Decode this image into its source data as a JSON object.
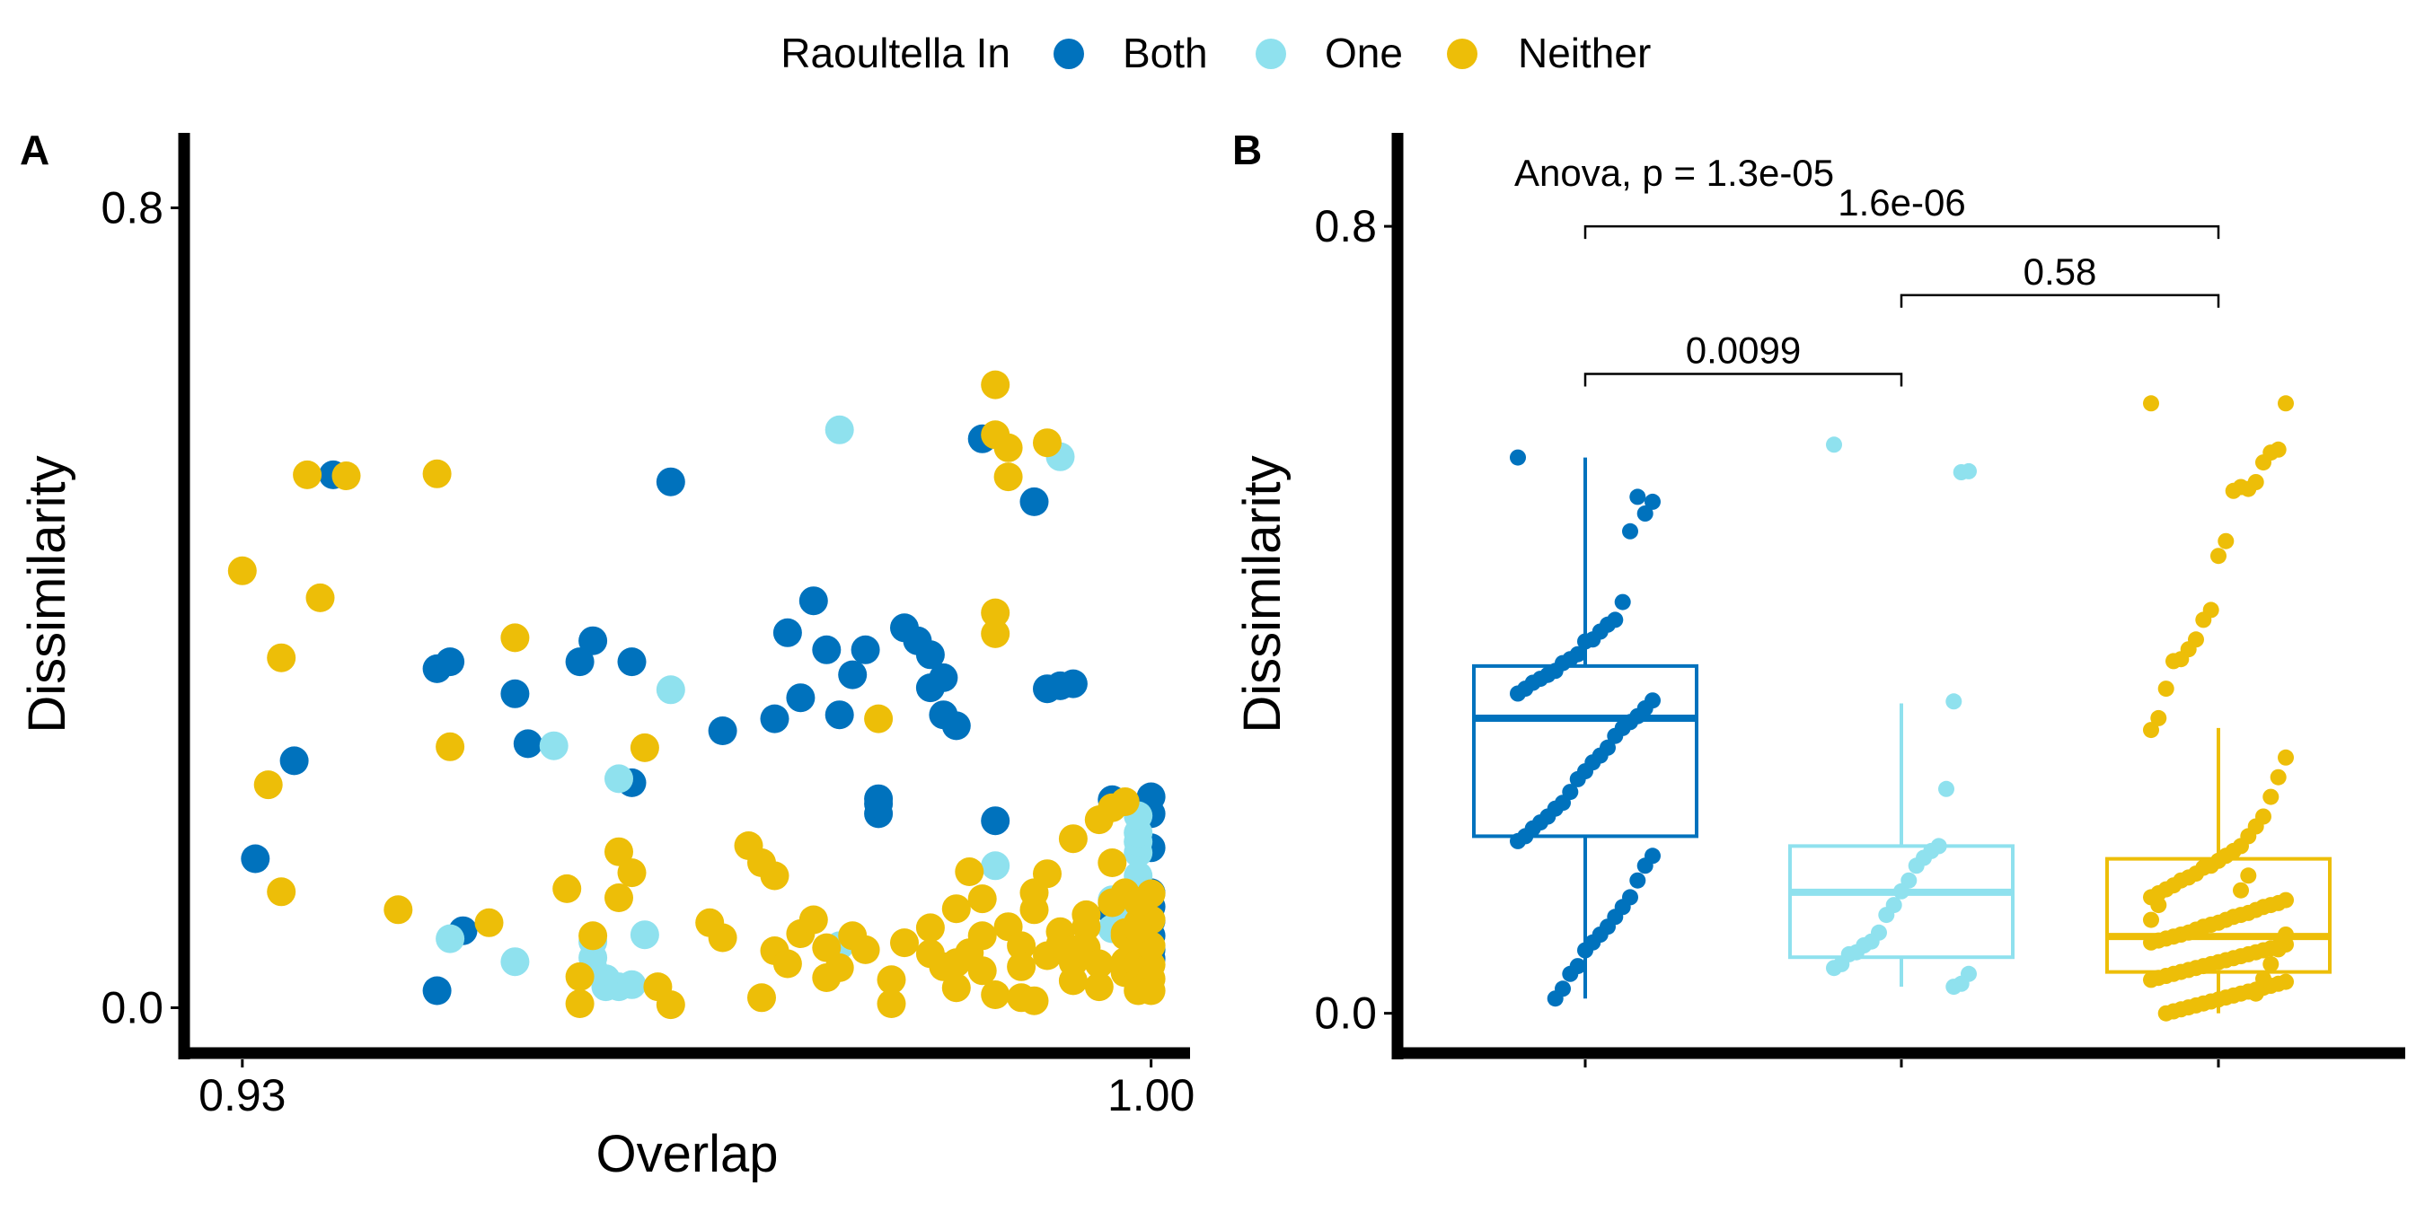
{
  "legend": {
    "title": "Raoultella In",
    "entries": [
      {
        "label": "Both",
        "color": "#0072BD"
      },
      {
        "label": "One",
        "color": "#8FE1EE"
      },
      {
        "label": "Neither",
        "color": "#EDBE08"
      }
    ]
  },
  "chart_data": [
    {
      "panel_tag": "A",
      "type": "scatter",
      "xlabel": "Overlap",
      "ylabel": "Dissimilarity",
      "xlim": [
        0.926,
        1.003
      ],
      "ylim": [
        -0.04,
        0.875
      ],
      "xticks": [
        {
          "value": 0.93,
          "label": "0.93"
        },
        {
          "value": 1.0,
          "label": "1.00"
        }
      ],
      "yticks": [
        {
          "value": 0.0,
          "label": "0.0"
        },
        {
          "value": 0.8,
          "label": "0.8"
        }
      ],
      "grid": false,
      "legend_position": "top",
      "series": [
        {
          "name": "Both",
          "color": "#0072BD",
          "points": [
            [
              0.937,
              0.533
            ],
            [
              0.934,
              0.247
            ],
            [
              0.931,
              0.149
            ],
            [
              0.945,
              0.339
            ],
            [
              0.946,
              0.346
            ],
            [
              0.951,
              0.314
            ],
            [
              0.952,
              0.264
            ],
            [
              0.957,
              0.367
            ],
            [
              0.956,
              0.346
            ],
            [
              0.96,
              0.346
            ],
            [
              0.96,
              0.225
            ],
            [
              0.963,
              0.526
            ],
            [
              0.967,
              0.277
            ],
            [
              0.971,
              0.289
            ],
            [
              0.972,
              0.375
            ],
            [
              0.974,
              0.407
            ],
            [
              0.975,
              0.358
            ],
            [
              0.976,
              0.293
            ],
            [
              0.977,
              0.333
            ],
            [
              0.978,
              0.358
            ],
            [
              0.973,
              0.31
            ],
            [
              0.979,
              0.194
            ],
            [
              0.979,
              0.209
            ],
            [
              0.979,
              0.204
            ],
            [
              0.981,
              0.38
            ],
            [
              0.982,
              0.367
            ],
            [
              0.983,
              0.353
            ],
            [
              0.983,
              0.32
            ],
            [
              0.984,
              0.293
            ],
            [
              0.984,
              0.33
            ],
            [
              0.985,
              0.282
            ],
            [
              0.987,
              0.569
            ],
            [
              0.991,
              0.506
            ],
            [
              0.988,
              0.187
            ],
            [
              0.992,
              0.319
            ],
            [
              0.993,
              0.322
            ],
            [
              0.994,
              0.324
            ],
            [
              0.997,
              0.208
            ],
            [
              0.997,
              0.096
            ],
            [
              0.945,
              0.017
            ],
            [
              0.947,
              0.077
            ],
            [
              0.999,
              0.066
            ],
            [
              0.999,
              0.088
            ],
            [
              1.0,
              0.115
            ],
            [
              1.0,
              0.101
            ],
            [
              1.0,
              0.087
            ],
            [
              1.0,
              0.072
            ],
            [
              1.0,
              0.058
            ],
            [
              1.0,
              0.049
            ],
            [
              1.0,
              0.16
            ],
            [
              1.0,
              0.194
            ],
            [
              1.0,
              0.211
            ],
            [
              0.999,
              0.125
            ],
            [
              0.999,
              0.097
            ],
            [
              0.999,
              0.066
            ],
            [
              0.999,
              0.052
            ],
            [
              0.999,
              0.037
            ],
            [
              0.998,
              0.083
            ]
          ]
        },
        {
          "name": "One",
          "color": "#8FE1EE",
          "points": [
            [
              0.976,
              0.578
            ],
            [
              0.993,
              0.551
            ],
            [
              0.963,
              0.318
            ],
            [
              0.954,
              0.262
            ],
            [
              0.959,
              0.229
            ],
            [
              0.988,
              0.142
            ],
            [
              0.946,
              0.069
            ],
            [
              0.951,
              0.046
            ],
            [
              0.957,
              0.066
            ],
            [
              0.957,
              0.05
            ],
            [
              0.958,
              0.029
            ],
            [
              0.958,
              0.021
            ],
            [
              0.959,
              0.021
            ],
            [
              0.96,
              0.023
            ],
            [
              0.961,
              0.073
            ],
            [
              0.976,
              0.062
            ],
            [
              0.997,
              0.108
            ],
            [
              0.997,
              0.079
            ],
            [
              0.999,
              0.155
            ],
            [
              0.999,
              0.166
            ],
            [
              0.999,
              0.175
            ],
            [
              0.999,
              0.192
            ],
            [
              0.999,
              0.132
            ],
            [
              0.998,
              0.095
            ],
            [
              0.957,
              0.04
            ]
          ]
        },
        {
          "name": "Neither",
          "color": "#EDBE08",
          "points": [
            [
              0.93,
              0.437
            ],
            [
              0.935,
              0.533
            ],
            [
              0.938,
              0.532
            ],
            [
              0.933,
              0.35
            ],
            [
              0.936,
              0.41
            ],
            [
              0.932,
              0.223
            ],
            [
              0.933,
              0.116
            ],
            [
              0.942,
              0.098
            ],
            [
              0.945,
              0.534
            ],
            [
              0.946,
              0.261
            ],
            [
              0.949,
              0.085
            ],
            [
              0.951,
              0.37
            ],
            [
              0.955,
              0.119
            ],
            [
              0.956,
              0.031
            ],
            [
              0.957,
              0.072
            ],
            [
              0.959,
              0.11
            ],
            [
              0.959,
              0.156
            ],
            [
              0.96,
              0.135
            ],
            [
              0.961,
              0.26
            ],
            [
              0.962,
              0.021
            ],
            [
              0.966,
              0.085
            ],
            [
              0.967,
              0.07
            ],
            [
              0.969,
              0.162
            ],
            [
              0.97,
              0.145
            ],
            [
              0.971,
              0.132
            ],
            [
              0.971,
              0.057
            ],
            [
              0.972,
              0.044
            ],
            [
              0.973,
              0.074
            ],
            [
              0.974,
              0.088
            ],
            [
              0.975,
              0.06
            ],
            [
              0.976,
              0.04
            ],
            [
              0.977,
              0.072
            ],
            [
              0.978,
              0.058
            ],
            [
              0.979,
              0.289
            ],
            [
              0.98,
              0.028
            ],
            [
              0.981,
              0.065
            ],
            [
              0.983,
              0.08
            ],
            [
              0.983,
              0.054
            ],
            [
              0.984,
              0.041
            ],
            [
              0.985,
              0.045
            ],
            [
              0.985,
              0.099
            ],
            [
              0.986,
              0.136
            ],
            [
              0.986,
              0.055
            ],
            [
              0.987,
              0.072
            ],
            [
              0.987,
              0.037
            ],
            [
              0.987,
              0.109
            ],
            [
              0.988,
              0.374
            ],
            [
              0.988,
              0.573
            ],
            [
              0.988,
              0.623
            ],
            [
              0.989,
              0.531
            ],
            [
              0.989,
              0.56
            ],
            [
              0.988,
              0.395
            ],
            [
              0.989,
              0.081
            ],
            [
              0.99,
              0.062
            ],
            [
              0.99,
              0.041
            ],
            [
              0.991,
              0.115
            ],
            [
              0.991,
              0.098
            ],
            [
              0.992,
              0.565
            ],
            [
              0.992,
              0.134
            ],
            [
              0.992,
              0.052
            ],
            [
              0.993,
              0.076
            ],
            [
              0.993,
              0.063
            ],
            [
              0.994,
              0.045
            ],
            [
              0.994,
              0.027
            ],
            [
              0.995,
              0.081
            ],
            [
              0.995,
              0.06
            ],
            [
              0.996,
              0.044
            ],
            [
              0.996,
              0.188
            ],
            [
              0.997,
              0.105
            ],
            [
              0.997,
              0.2
            ],
            [
              0.998,
              0.035
            ],
            [
              0.998,
              0.046
            ],
            [
              0.998,
              0.072
            ],
            [
              0.999,
              0.085
            ],
            [
              0.999,
              0.058
            ],
            [
              0.999,
              0.044
            ],
            [
              0.999,
              0.025
            ],
            [
              1.0,
              0.043
            ],
            [
              1.0,
              0.062
            ],
            [
              1.0,
              0.088
            ],
            [
              1.0,
              0.114
            ],
            [
              1.0,
              0.029
            ],
            [
              0.998,
              0.206
            ],
            [
              0.997,
              0.145
            ],
            [
              0.998,
              0.115
            ],
            [
              0.994,
              0.169
            ],
            [
              0.956,
              0.004
            ],
            [
              0.963,
              0.003
            ],
            [
              0.97,
              0.01
            ],
            [
              0.975,
              0.03
            ],
            [
              0.98,
              0.004
            ],
            [
              0.985,
              0.02
            ],
            [
              0.988,
              0.013
            ],
            [
              0.99,
              0.01
            ],
            [
              0.991,
              0.007
            ],
            [
              0.996,
              0.021
            ],
            [
              0.999,
              0.017
            ],
            [
              1.0,
              0.017
            ],
            [
              0.999,
              0.105
            ],
            [
              0.998,
              0.075
            ],
            [
              0.999,
              0.079
            ],
            [
              0.994,
              0.058
            ],
            [
              0.995,
              0.093
            ]
          ]
        }
      ]
    },
    {
      "panel_tag": "B",
      "type": "box",
      "xlabel": "",
      "ylabel": "Dissimilarity",
      "ylim": [
        -0.035,
        0.895
      ],
      "yticks": [
        {
          "value": 0.0,
          "label": "0.0"
        },
        {
          "value": 0.8,
          "label": "0.8"
        }
      ],
      "grid": false,
      "annotation": "Anova, p = 1.3e-05",
      "groups": [
        {
          "name": "Both",
          "color": "#0072BD",
          "q1": 0.18,
          "median": 0.3,
          "q3": 0.353,
          "whisker_low": 0.015,
          "whisker_high": 0.565,
          "points": [
            0.565,
            0.52,
            0.508,
            0.525,
            0.49,
            0.418,
            0.4,
            0.395,
            0.388,
            0.38,
            0.378,
            0.365,
            0.36,
            0.356,
            0.348,
            0.344,
            0.34,
            0.336,
            0.33,
            0.325,
            0.318,
            0.31,
            0.302,
            0.296,
            0.29,
            0.282,
            0.27,
            0.262,
            0.255,
            0.246,
            0.238,
            0.225,
            0.214,
            0.208,
            0.2,
            0.194,
            0.188,
            0.18,
            0.175,
            0.16,
            0.15,
            0.135,
            0.118,
            0.108,
            0.098,
            0.088,
            0.08,
            0.072,
            0.064,
            0.048,
            0.04,
            0.025,
            0.015
          ]
        },
        {
          "name": "One",
          "color": "#8FE1EE",
          "q1": 0.057,
          "median": 0.123,
          "q3": 0.17,
          "whisker_low": 0.027,
          "whisker_high": 0.315,
          "points": [
            0.578,
            0.551,
            0.55,
            0.317,
            0.228,
            0.17,
            0.165,
            0.158,
            0.15,
            0.135,
            0.124,
            0.11,
            0.1,
            0.082,
            0.073,
            0.069,
            0.062,
            0.06,
            0.05,
            0.046,
            0.04,
            0.03,
            0.027
          ]
        },
        {
          "name": "Neither",
          "color": "#EDBE08",
          "q1": 0.042,
          "median": 0.078,
          "q3": 0.157,
          "whisker_low": 0.0,
          "whisker_high": 0.29,
          "points": [
            0.62,
            0.62,
            0.573,
            0.57,
            0.56,
            0.54,
            0.533,
            0.535,
            0.531,
            0.48,
            0.465,
            0.41,
            0.4,
            0.38,
            0.37,
            0.36,
            0.358,
            0.33,
            0.3,
            0.288,
            0.26,
            0.24,
            0.22,
            0.2,
            0.19,
            0.18,
            0.17,
            0.165,
            0.16,
            0.155,
            0.15,
            0.148,
            0.142,
            0.138,
            0.135,
            0.13,
            0.126,
            0.122,
            0.118,
            0.115,
            0.112,
            0.11,
            0.108,
            0.105,
            0.102,
            0.1,
            0.098,
            0.095,
            0.092,
            0.09,
            0.088,
            0.085,
            0.082,
            0.08,
            0.078,
            0.076,
            0.074,
            0.072,
            0.07,
            0.068,
            0.066,
            0.064,
            0.062,
            0.06,
            0.058,
            0.056,
            0.054,
            0.052,
            0.05,
            0.048,
            0.046,
            0.044,
            0.042,
            0.04,
            0.038,
            0.036,
            0.034,
            0.032,
            0.03,
            0.028,
            0.026,
            0.024,
            0.022,
            0.02,
            0.018,
            0.016,
            0.014,
            0.012,
            0.01,
            0.008,
            0.006,
            0.004,
            0.002,
            0.0,
            0.11,
            0.095,
            0.08,
            0.065,
            0.05,
            0.035,
            0.02,
            0.14,
            0.125
          ]
        }
      ],
      "comparisons": [
        {
          "groups": [
            "Both",
            "Neither"
          ],
          "label": "1.6e-06",
          "y": 0.8
        },
        {
          "groups": [
            "One",
            "Neither"
          ],
          "label": "0.58",
          "y": 0.73
        },
        {
          "groups": [
            "Both",
            "One"
          ],
          "label": "0.0099",
          "y": 0.65
        }
      ]
    }
  ]
}
